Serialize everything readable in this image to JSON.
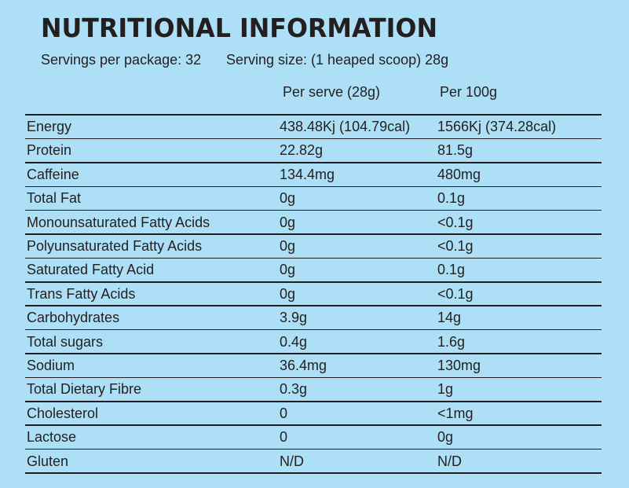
{
  "header": {
    "title": "NUTRITIONAL INFORMATION",
    "servings_per_package": "Servings per package: 32",
    "serving_size": "Serving size: (1 heaped scoop) 28g"
  },
  "table": {
    "columns": [
      "Per serve (28g)",
      "Per 100g"
    ],
    "rows": [
      [
        "Energy",
        "438.48Kj (104.79cal)",
        "1566Kj (374.28cal)"
      ],
      [
        "Protein",
        "22.82g",
        "81.5g"
      ],
      [
        "Caffeine",
        "134.4mg",
        "480mg"
      ],
      [
        "Total Fat",
        "0g",
        "0.1g"
      ],
      [
        "Monounsaturated Fatty Acids",
        "0g",
        "<0.1g"
      ],
      [
        "Polyunsaturated Fatty Acids",
        "0g",
        "<0.1g"
      ],
      [
        "Saturated Fatty Acid",
        "0g",
        "0.1g"
      ],
      [
        "Trans Fatty Acids",
        "0g",
        "<0.1g"
      ],
      [
        "Carbohydrates",
        "3.9g",
        "14g"
      ],
      [
        "Total sugars",
        "0.4g",
        "1.6g"
      ],
      [
        "Sodium",
        "36.4mg",
        "130mg"
      ],
      [
        "Total Dietary Fibre",
        "0.3g",
        "1g"
      ],
      [
        "Cholesterol",
        "0",
        "<1mg"
      ],
      [
        "Lactose",
        "0",
        "0g"
      ],
      [
        "Gluten",
        "N/D",
        "N/D"
      ]
    ]
  }
}
